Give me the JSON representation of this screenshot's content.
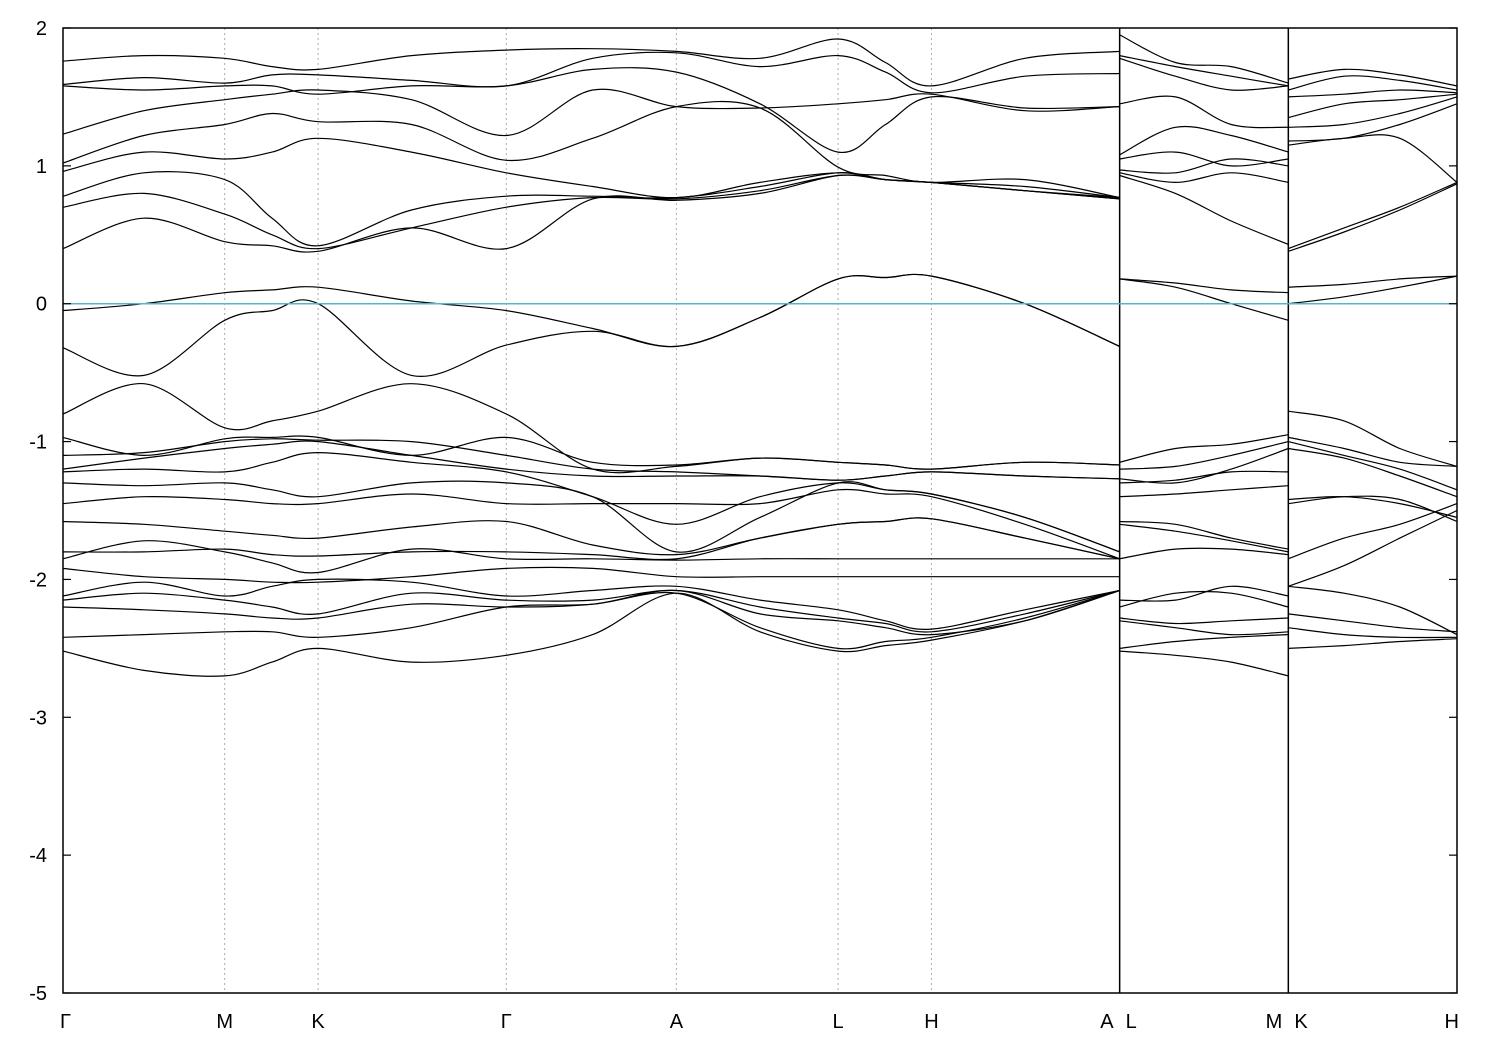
{
  "chart_data": {
    "type": "line",
    "title": "",
    "xlabel": "",
    "ylabel": "",
    "ylim": [
      -5,
      2
    ],
    "xlim": [
      0,
      10
    ],
    "y_ticks": [
      2,
      1,
      0,
      -1,
      -2,
      -3,
      -4,
      -5
    ],
    "y_tick_labels": [
      "2",
      "1",
      "0",
      "-1",
      "-2",
      "-3",
      "-4",
      "-5"
    ],
    "k_points": [
      {
        "label": "Γ",
        "x": 0.0
      },
      {
        "label": "M",
        "x": 1.16
      },
      {
        "label": "K",
        "x": 1.83
      },
      {
        "label": "Γ",
        "x": 3.18
      },
      {
        "label": "A",
        "x": 4.4
      },
      {
        "label": "L",
        "x": 5.56
      },
      {
        "label": "H",
        "x": 6.23
      },
      {
        "label": "A",
        "x": 7.58
      },
      {
        "label": "L",
        "x": 7.58
      },
      {
        "label": "M",
        "x": 8.79
      },
      {
        "label": "K",
        "x": 8.79
      },
      {
        "label": "H",
        "x": 10.0
      }
    ],
    "segment_breaks": [
      7.58,
      8.79
    ],
    "fermi_level": 0,
    "grid": "vertical dotted at k-points",
    "legend": "none",
    "colors": {
      "bands": "#000000",
      "fermi": "#5ab4c8",
      "kgrid": "#aaaaaa"
    },
    "segments": [
      {
        "x": [
          0.0,
          0.58,
          1.16,
          1.5,
          1.83,
          2.5,
          3.18,
          3.8,
          4.4,
          5.0,
          5.56,
          5.9,
          6.23,
          6.9,
          7.58
        ],
        "series": [
          {
            "values": [
              1.76,
              1.8,
              1.78,
              1.72,
              1.7,
              1.8,
              1.84,
              1.85,
              1.83,
              1.78,
              1.92,
              1.75,
              1.58,
              1.78,
              1.83
            ]
          },
          {
            "values": [
              1.59,
              1.64,
              1.6,
              1.66,
              1.66,
              1.62,
              1.58,
              1.78,
              1.82,
              1.72,
              1.8,
              1.68,
              1.53,
              1.65,
              1.67
            ]
          },
          {
            "values": [
              1.58,
              1.55,
              1.58,
              1.58,
              1.52,
              1.58,
              1.58,
              1.7,
              1.68,
              1.45,
              1.1,
              1.3,
              1.5,
              1.42,
              1.43
            ]
          },
          {
            "values": [
              1.23,
              1.4,
              1.48,
              1.52,
              1.55,
              1.48,
              1.22,
              1.55,
              1.43,
              1.42,
              1.45,
              1.48,
              1.52,
              1.4,
              1.43
            ]
          },
          {
            "values": [
              1.02,
              1.22,
              1.3,
              1.38,
              1.32,
              1.3,
              1.04,
              1.2,
              1.43,
              1.42,
              0.99,
              0.93,
              0.88,
              0.9,
              0.77
            ]
          },
          {
            "values": [
              0.96,
              1.1,
              1.05,
              1.1,
              1.2,
              1.1,
              0.95,
              0.85,
              0.77,
              0.88,
              0.95,
              0.9,
              0.88,
              0.82,
              0.77
            ]
          },
          {
            "values": [
              0.78,
              0.95,
              0.9,
              0.62,
              0.42,
              0.68,
              0.78,
              0.78,
              0.77,
              0.85,
              0.95,
              0.9,
              0.88,
              0.85,
              0.77
            ]
          },
          {
            "values": [
              0.7,
              0.8,
              0.65,
              0.5,
              0.4,
              0.55,
              0.7,
              0.77,
              0.76,
              0.82,
              0.93,
              0.9,
              0.88,
              0.82,
              0.76
            ]
          },
          {
            "values": [
              0.4,
              0.62,
              0.45,
              0.42,
              0.38,
              0.55,
              0.4,
              0.76,
              0.75,
              0.8,
              0.93,
              0.9,
              0.88,
              0.82,
              0.76
            ]
          },
          {
            "values": [
              -0.05,
              0.0,
              0.08,
              0.1,
              0.12,
              0.02,
              -0.05,
              -0.18,
              -0.31,
              -0.1,
              0.18,
              0.19,
              0.2,
              0.0,
              -0.31
            ]
          },
          {
            "values": [
              -0.32,
              -0.52,
              -0.12,
              -0.05,
              0.0,
              -0.52,
              -0.3,
              -0.2,
              -0.31,
              -0.1,
              0.18,
              0.19,
              0.2,
              0.0,
              -0.31
            ]
          },
          {
            "values": [
              -0.8,
              -0.58,
              -0.9,
              -0.85,
              -0.78,
              -0.58,
              -0.8,
              -1.2,
              -1.18,
              -1.12,
              -1.15,
              -1.17,
              -1.2,
              -1.15,
              -1.17
            ]
          },
          {
            "values": [
              -0.97,
              -1.1,
              -0.98,
              -0.97,
              -0.97,
              -1.1,
              -0.97,
              -1.15,
              -1.17,
              -1.12,
              -1.15,
              -1.17,
              -1.2,
              -1.15,
              -1.17
            ]
          },
          {
            "values": [
              -1.1,
              -1.08,
              -1.0,
              -0.98,
              -0.99,
              -1.0,
              -1.1,
              -1.2,
              -1.22,
              -1.25,
              -1.28,
              -1.25,
              -1.22,
              -1.25,
              -1.27
            ]
          },
          {
            "values": [
              -1.2,
              -1.12,
              -1.05,
              -1.02,
              -1.0,
              -1.1,
              -1.2,
              -1.25,
              -1.25,
              -1.25,
              -1.28,
              -1.25,
              -1.22,
              -1.25,
              -1.27
            ]
          },
          {
            "values": [
              -1.22,
              -1.2,
              -1.22,
              -1.15,
              -1.08,
              -1.15,
              -1.22,
              -1.4,
              -1.6,
              -1.4,
              -1.3,
              -1.35,
              -1.38,
              -1.55,
              -1.8
            ]
          },
          {
            "values": [
              -1.3,
              -1.32,
              -1.3,
              -1.35,
              -1.4,
              -1.3,
              -1.3,
              -1.4,
              -1.8,
              -1.55,
              -1.3,
              -1.35,
              -1.38,
              -1.55,
              -1.8
            ]
          },
          {
            "values": [
              -1.45,
              -1.4,
              -1.42,
              -1.45,
              -1.45,
              -1.38,
              -1.45,
              -1.45,
              -1.45,
              -1.45,
              -1.35,
              -1.38,
              -1.4,
              -1.6,
              -1.85
            ]
          },
          {
            "values": [
              -1.58,
              -1.6,
              -1.65,
              -1.68,
              -1.7,
              -1.62,
              -1.58,
              -1.75,
              -1.82,
              -1.7,
              -1.6,
              -1.58,
              -1.56,
              -1.7,
              -1.85
            ]
          },
          {
            "values": [
              -1.8,
              -1.8,
              -1.78,
              -1.82,
              -1.83,
              -1.8,
              -1.8,
              -1.82,
              -1.85,
              -1.7,
              -1.6,
              -1.58,
              -1.56,
              -1.7,
              -1.85
            ]
          },
          {
            "values": [
              -1.85,
              -1.72,
              -1.8,
              -1.88,
              -1.95,
              -1.78,
              -1.85,
              -1.85,
              -1.86,
              -1.85,
              -1.85,
              -1.85,
              -1.85,
              -1.85,
              -1.85
            ]
          },
          {
            "values": [
              -1.92,
              -1.98,
              -2.0,
              -2.02,
              -2.02,
              -1.98,
              -1.92,
              -1.92,
              -1.98,
              -1.98,
              -1.98,
              -1.98,
              -1.98,
              -1.98,
              -1.98
            ]
          },
          {
            "values": [
              -2.12,
              -2.02,
              -2.12,
              -2.05,
              -2.0,
              -2.02,
              -2.12,
              -2.08,
              -2.05,
              -2.15,
              -2.22,
              -2.3,
              -2.36,
              -2.22,
              -2.08
            ]
          },
          {
            "values": [
              -2.15,
              -2.1,
              -2.15,
              -2.2,
              -2.25,
              -2.1,
              -2.15,
              -2.15,
              -2.08,
              -2.2,
              -2.28,
              -2.32,
              -2.38,
              -2.25,
              -2.08
            ]
          },
          {
            "values": [
              -2.2,
              -2.22,
              -2.25,
              -2.28,
              -2.28,
              -2.18,
              -2.2,
              -2.18,
              -2.08,
              -2.25,
              -2.3,
              -2.35,
              -2.4,
              -2.3,
              -2.08
            ]
          },
          {
            "values": [
              -2.42,
              -2.4,
              -2.38,
              -2.38,
              -2.42,
              -2.35,
              -2.2,
              -2.18,
              -2.1,
              -2.35,
              -2.5,
              -2.45,
              -2.42,
              -2.28,
              -2.08
            ]
          },
          {
            "values": [
              -2.52,
              -2.66,
              -2.7,
              -2.6,
              -2.5,
              -2.6,
              -2.55,
              -2.4,
              -2.1,
              -2.38,
              -2.52,
              -2.48,
              -2.44,
              -2.3,
              -2.08
            ]
          }
        ]
      },
      {
        "x": [
          7.58,
          7.98,
          8.38,
          8.79
        ],
        "series": [
          {
            "values": [
              1.95,
              1.75,
              1.72,
              1.6
            ]
          },
          {
            "values": [
              1.8,
              1.72,
              1.65,
              1.58
            ]
          },
          {
            "values": [
              1.78,
              1.65,
              1.55,
              1.58
            ]
          },
          {
            "values": [
              1.45,
              1.5,
              1.3,
              1.28
            ]
          },
          {
            "values": [
              1.08,
              1.28,
              1.22,
              1.1
            ]
          },
          {
            "values": [
              1.05,
              1.1,
              1.0,
              1.05
            ]
          },
          {
            "values": [
              0.97,
              0.95,
              1.05,
              1.0
            ]
          },
          {
            "values": [
              0.95,
              0.88,
              0.95,
              0.88
            ]
          },
          {
            "values": [
              0.93,
              0.8,
              0.6,
              0.43
            ]
          },
          {
            "values": [
              0.18,
              0.15,
              0.1,
              0.08
            ]
          },
          {
            "values": [
              0.18,
              0.12,
              0.0,
              -0.12
            ]
          },
          {
            "values": [
              -1.15,
              -1.05,
              -1.02,
              -0.95
            ]
          },
          {
            "values": [
              -1.2,
              -1.18,
              -1.1,
              -1.0
            ]
          },
          {
            "values": [
              -1.27,
              -1.3,
              -1.2,
              -1.05
            ]
          },
          {
            "values": [
              -1.3,
              -1.28,
              -1.22,
              -1.22
            ]
          },
          {
            "values": [
              -1.4,
              -1.38,
              -1.35,
              -1.32
            ]
          },
          {
            "values": [
              -1.58,
              -1.6,
              -1.7,
              -1.78
            ]
          },
          {
            "values": [
              -1.6,
              -1.65,
              -1.72,
              -1.8
            ]
          },
          {
            "values": [
              -1.85,
              -1.78,
              -1.78,
              -1.82
            ]
          },
          {
            "values": [
              -2.15,
              -2.15,
              -2.05,
              -2.12
            ]
          },
          {
            "values": [
              -2.2,
              -2.1,
              -2.1,
              -2.2
            ]
          },
          {
            "values": [
              -2.28,
              -2.32,
              -2.3,
              -2.28
            ]
          },
          {
            "values": [
              -2.3,
              -2.35,
              -2.4,
              -2.38
            ]
          },
          {
            "values": [
              -2.52,
              -2.55,
              -2.6,
              -2.7
            ]
          },
          {
            "values": [
              -2.5,
              -2.45,
              -2.42,
              -2.4
            ]
          }
        ]
      },
      {
        "x": [
          8.79,
          9.19,
          9.59,
          10.0
        ],
        "series": [
          {
            "values": [
              1.63,
              1.7,
              1.66,
              1.58
            ]
          },
          {
            "values": [
              1.55,
              1.65,
              1.62,
              1.55
            ]
          },
          {
            "values": [
              1.5,
              1.52,
              1.55,
              1.53
            ]
          },
          {
            "values": [
              1.35,
              1.45,
              1.48,
              1.52
            ]
          },
          {
            "values": [
              1.28,
              1.3,
              1.38,
              1.5
            ]
          },
          {
            "values": [
              1.18,
              1.2,
              1.3,
              1.45
            ]
          },
          {
            "values": [
              1.15,
              1.2,
              1.2,
              0.88
            ]
          },
          {
            "values": [
              0.4,
              0.55,
              0.7,
              0.88
            ]
          },
          {
            "values": [
              0.38,
              0.52,
              0.68,
              0.87
            ]
          },
          {
            "values": [
              0.12,
              0.14,
              0.18,
              0.2
            ]
          },
          {
            "values": [
              0.0,
              0.05,
              0.12,
              0.2
            ]
          },
          {
            "values": [
              -0.78,
              -0.85,
              -1.05,
              -1.18
            ]
          },
          {
            "values": [
              -0.97,
              -1.05,
              -1.15,
              -1.18
            ]
          },
          {
            "values": [
              -1.0,
              -1.1,
              -1.2,
              -1.35
            ]
          },
          {
            "values": [
              -1.05,
              -1.12,
              -1.25,
              -1.4
            ]
          },
          {
            "values": [
              -1.42,
              -1.4,
              -1.45,
              -1.55
            ]
          },
          {
            "values": [
              -1.45,
              -1.4,
              -1.42,
              -1.58
            ]
          },
          {
            "values": [
              -1.85,
              -1.7,
              -1.6,
              -1.45
            ]
          },
          {
            "values": [
              -2.05,
              -1.9,
              -1.7,
              -1.5
            ]
          },
          {
            "values": [
              -2.05,
              -2.1,
              -2.2,
              -2.4
            ]
          },
          {
            "values": [
              -2.25,
              -2.3,
              -2.35,
              -2.38
            ]
          },
          {
            "values": [
              -2.35,
              -2.4,
              -2.42,
              -2.42
            ]
          },
          {
            "values": [
              -2.5,
              -2.48,
              -2.45,
              -2.43
            ]
          }
        ]
      }
    ]
  }
}
